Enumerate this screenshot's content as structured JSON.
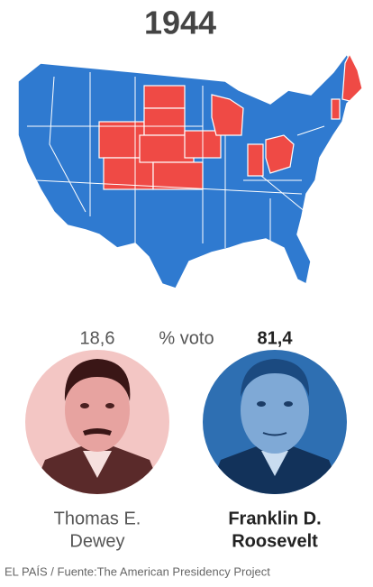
{
  "title": "1944",
  "vote_label": "% voto",
  "candidates": [
    {
      "name_lines": [
        "Thomas E.",
        "Dewey"
      ],
      "value_label": "18,6"
    },
    {
      "name_lines": [
        "Franklin D.",
        "Roosevelt"
      ],
      "value_label": "81,4"
    }
  ],
  "footer": "EL PAÍS / Fuente:The American Presidency Project"
}
